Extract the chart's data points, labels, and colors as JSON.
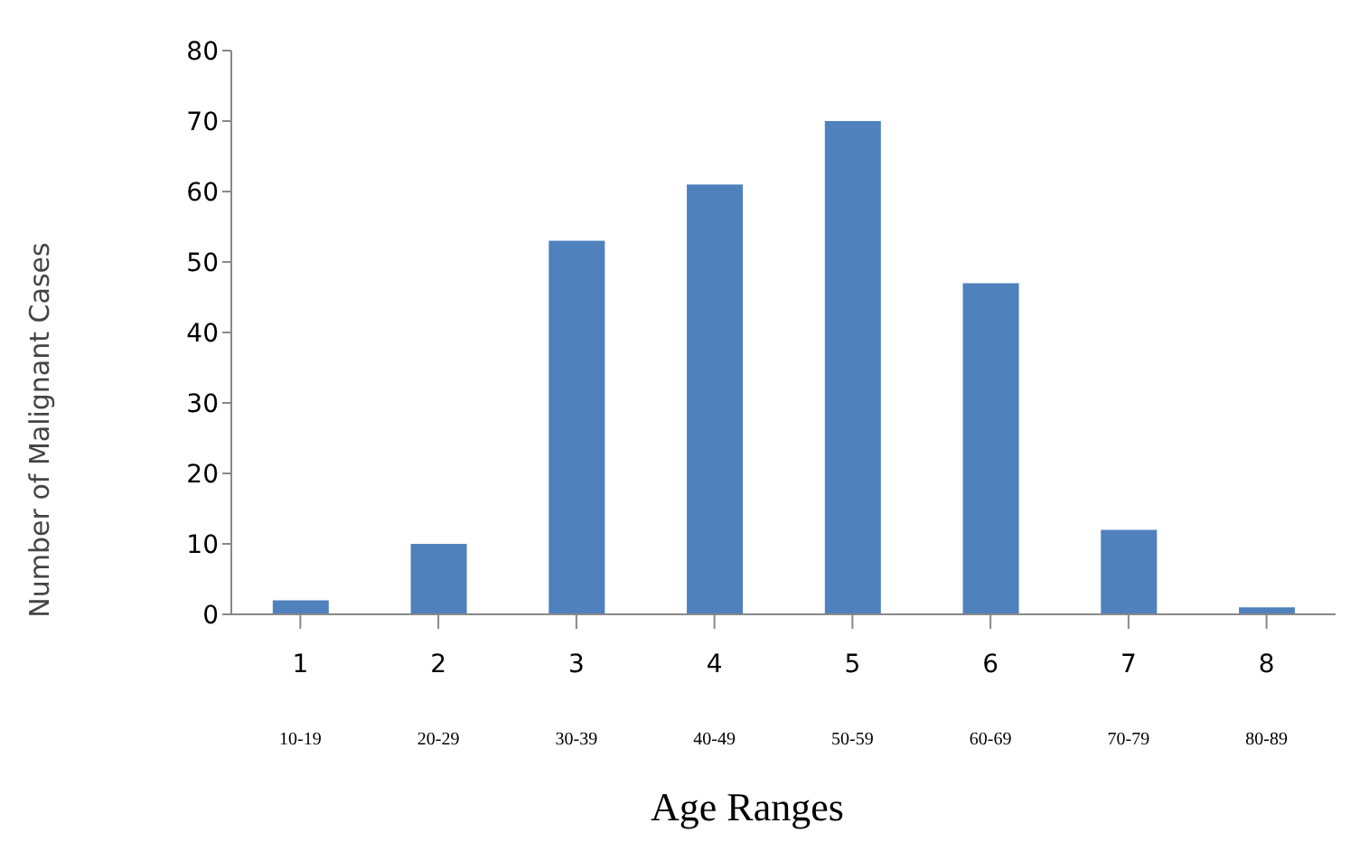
{
  "chart_data": {
    "type": "bar",
    "xlabel": "Age Ranges",
    "ylabel": "Number of Malignant Cases",
    "categories": [
      "1\n10-19",
      "2\n20-29",
      "3\n30-39",
      "4\n40-49",
      "5\n50-59",
      "6\n60-69",
      "7\n70-79",
      "8\n80-89"
    ],
    "values": [
      2,
      10,
      53,
      61,
      70,
      47,
      12,
      1
    ],
    "color": "#4f81bd",
    "ylim": [
      0,
      80
    ],
    "yticks": [
      0,
      10,
      20,
      30,
      40,
      50,
      60,
      70,
      80
    ],
    "grid": false,
    "legend": false
  }
}
